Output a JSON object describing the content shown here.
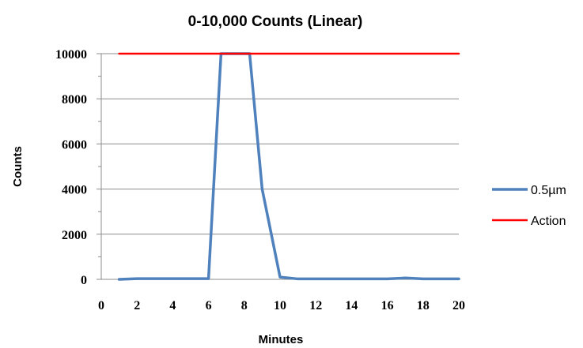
{
  "chart_data": {
    "type": "line",
    "title": "0-10,000 Counts (Linear)",
    "xlabel": "Minutes",
    "ylabel": "Counts",
    "xlim": [
      0,
      20
    ],
    "ylim": [
      0,
      10000
    ],
    "x_ticks": [
      "0",
      "2",
      "4",
      "6",
      "8",
      "10",
      "12",
      "14",
      "16",
      "18",
      "20"
    ],
    "y_ticks": [
      "0",
      "2000",
      "4000",
      "6000",
      "8000",
      "10000"
    ],
    "grid": "horizontal",
    "legend_position": "right",
    "series": [
      {
        "name": "0.5µm",
        "color": "#4f81bd",
        "x": [
          1,
          2,
          3,
          4,
          5,
          6,
          6.7,
          8.3,
          9,
          10,
          11,
          12,
          13,
          14,
          15,
          16,
          17,
          18,
          19,
          20
        ],
        "y": [
          0,
          30,
          30,
          30,
          30,
          30,
          10000,
          10000,
          4000,
          100,
          20,
          20,
          20,
          20,
          20,
          20,
          60,
          20,
          20,
          20
        ]
      },
      {
        "name": "Action",
        "color": "#ff0000",
        "x": [
          1,
          20
        ],
        "y": [
          10000,
          10000
        ]
      }
    ]
  }
}
